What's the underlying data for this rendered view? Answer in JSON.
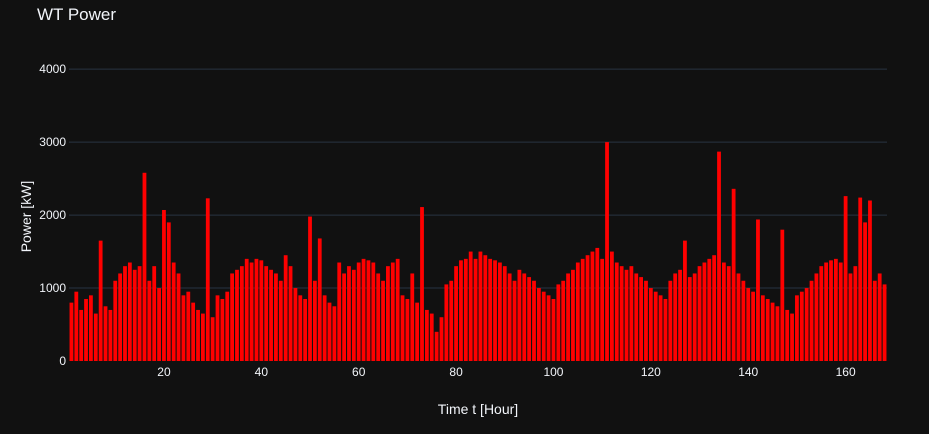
{
  "chart_data": {
    "type": "bar",
    "title": "WT Power",
    "xlabel": "Time t [Hour]",
    "ylabel": "Power [kW]",
    "xlim": [
      0.5,
      168.5
    ],
    "ylim": [
      0,
      4400
    ],
    "x_ticks": [
      20,
      40,
      60,
      80,
      100,
      120,
      140,
      160
    ],
    "y_ticks": [
      0,
      1000,
      2000,
      3000,
      4000
    ],
    "grid": "horizontal",
    "legend": "none",
    "series": [
      {
        "color": "#ff0000",
        "x_start": 1,
        "x_step": 1,
        "values": [
          800,
          950,
          700,
          850,
          900,
          650,
          1650,
          750,
          700,
          1100,
          1200,
          1300,
          1350,
          1250,
          1300,
          2580,
          1100,
          1300,
          1000,
          2070,
          1900,
          1350,
          1200,
          900,
          950,
          800,
          700,
          650,
          2230,
          600,
          900,
          850,
          950,
          1200,
          1250,
          1300,
          1400,
          1350,
          1400,
          1380,
          1300,
          1250,
          1200,
          1100,
          1450,
          1300,
          1000,
          900,
          850,
          1980,
          1100,
          1680,
          900,
          800,
          750,
          1350,
          1200,
          1300,
          1250,
          1350,
          1400,
          1380,
          1350,
          1200,
          1100,
          1300,
          1350,
          1400,
          900,
          850,
          1200,
          800,
          2110,
          700,
          650,
          400,
          600,
          1050,
          1100,
          1300,
          1380,
          1400,
          1500,
          1400,
          1500,
          1450,
          1400,
          1380,
          1350,
          1300,
          1200,
          1100,
          1250,
          1200,
          1150,
          1100,
          1000,
          950,
          900,
          850,
          1050,
          1100,
          1200,
          1250,
          1350,
          1400,
          1450,
          1500,
          1550,
          1400,
          3000,
          1500,
          1350,
          1300,
          1250,
          1300,
          1200,
          1150,
          1100,
          1000,
          950,
          900,
          850,
          1100,
          1200,
          1250,
          1650,
          1150,
          1200,
          1300,
          1350,
          1400,
          1450,
          2870,
          1350,
          1300,
          2360,
          1200,
          1100,
          1000,
          950,
          1940,
          900,
          850,
          800,
          750,
          1800,
          700,
          650,
          900,
          950,
          1000,
          1100,
          1200,
          1300,
          1350,
          1380,
          1400,
          1350,
          2260,
          1200,
          1300,
          2240,
          1900,
          2200,
          1100,
          1200,
          1050
        ]
      }
    ]
  }
}
